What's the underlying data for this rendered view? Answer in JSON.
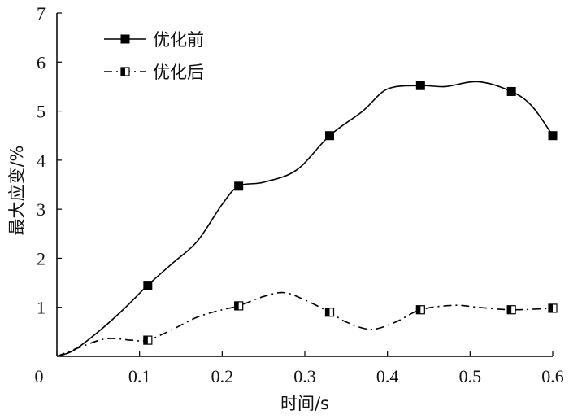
{
  "chart_data": {
    "type": "line",
    "xlabel": "时间/s",
    "ylabel": "最大应变/%",
    "xlim": [
      0,
      0.6
    ],
    "ylim": [
      0,
      7
    ],
    "x_ticks": [
      "0",
      "0.1",
      "0.2",
      "0.3",
      "0.4",
      "0.5",
      "0.6"
    ],
    "y_ticks": [
      "1",
      "2",
      "3",
      "4",
      "5",
      "6",
      "7"
    ],
    "grid": false,
    "legend_position": "top-left",
    "series": [
      {
        "name": "优化前",
        "line_style": "solid",
        "marker": "filled-square",
        "color": "#000000",
        "x": [
          0,
          0.02,
          0.05,
          0.08,
          0.11,
          0.14,
          0.17,
          0.2,
          0.22,
          0.25,
          0.29,
          0.33,
          0.37,
          0.4,
          0.44,
          0.47,
          0.51,
          0.55,
          0.575,
          0.6
        ],
        "y": [
          0,
          0.12,
          0.5,
          0.95,
          1.45,
          1.9,
          2.35,
          3.1,
          3.47,
          3.55,
          3.8,
          4.5,
          5.0,
          5.45,
          5.52,
          5.5,
          5.6,
          5.4,
          5.1,
          4.5
        ],
        "markers_x": [
          0.11,
          0.22,
          0.33,
          0.44,
          0.55,
          0.6
        ],
        "markers_y": [
          1.45,
          3.47,
          4.5,
          5.52,
          5.4,
          4.5
        ]
      },
      {
        "name": "优化后",
        "line_style": "dash-dot",
        "marker": "half-filled-square",
        "color": "#000000",
        "x": [
          0,
          0.03,
          0.06,
          0.09,
          0.11,
          0.14,
          0.17,
          0.2,
          0.22,
          0.25,
          0.275,
          0.3,
          0.33,
          0.35,
          0.38,
          0.41,
          0.44,
          0.48,
          0.51,
          0.55,
          0.6
        ],
        "y": [
          0,
          0.2,
          0.36,
          0.33,
          0.33,
          0.55,
          0.8,
          0.95,
          1.03,
          1.22,
          1.3,
          1.15,
          0.9,
          0.7,
          0.55,
          0.7,
          0.95,
          1.04,
          1.0,
          0.95,
          0.98
        ],
        "markers_x": [
          0.11,
          0.22,
          0.33,
          0.44,
          0.55,
          0.6
        ],
        "markers_y": [
          0.33,
          1.03,
          0.9,
          0.95,
          0.95,
          0.98
        ]
      }
    ]
  }
}
